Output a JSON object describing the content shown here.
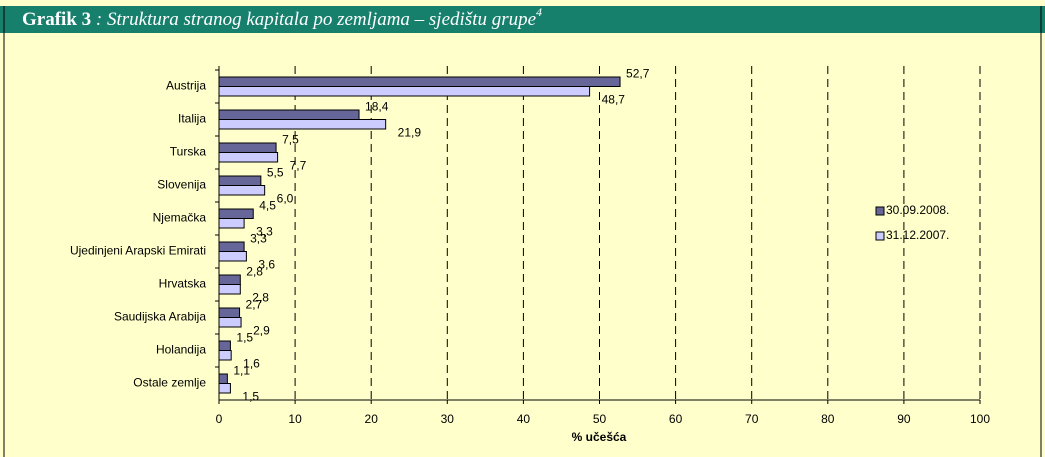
{
  "chart_data": {
    "type": "hbar",
    "title_label": "Grafik 3",
    "title": ": Struktura stranog kapitala po zemljama – sjedištu grupe",
    "title_footnote": "4",
    "xlabel": "% učešća",
    "categories": [
      "Austrija",
      "Italija",
      "Turska",
      "Slovenija",
      "Njemačka",
      "Ujedinjeni Arapski Emirati",
      "Hrvatska",
      "Saudijska Arabija",
      "Holandija",
      "Ostale zemlje"
    ],
    "series": [
      {
        "name": "30.09.2008.",
        "color": "#666699",
        "values": [
          52.7,
          18.4,
          7.5,
          5.5,
          4.5,
          3.3,
          2.8,
          2.7,
          1.5,
          1.1
        ],
        "value_labels": [
          "52,7",
          "18,4",
          "7,5",
          "5,5",
          "4,5",
          "3,3",
          "2,8",
          "2,7",
          "1,5",
          "1,1"
        ]
      },
      {
        "name": "31.12.2007.",
        "color": "#CCCCFF",
        "values": [
          48.7,
          21.9,
          7.7,
          6.0,
          3.3,
          3.6,
          2.8,
          2.9,
          1.6,
          1.5
        ],
        "value_labels": [
          "48,7",
          "21,9",
          "7,7",
          "6,0",
          "3,3",
          "3,6",
          "2,8",
          "2,9",
          "1,6",
          "1,5"
        ]
      }
    ],
    "xlim": [
      0,
      100
    ],
    "xticks": [
      0,
      10,
      20,
      30,
      40,
      50,
      60,
      70,
      80,
      90,
      100
    ],
    "grid": true,
    "legend": "right"
  }
}
